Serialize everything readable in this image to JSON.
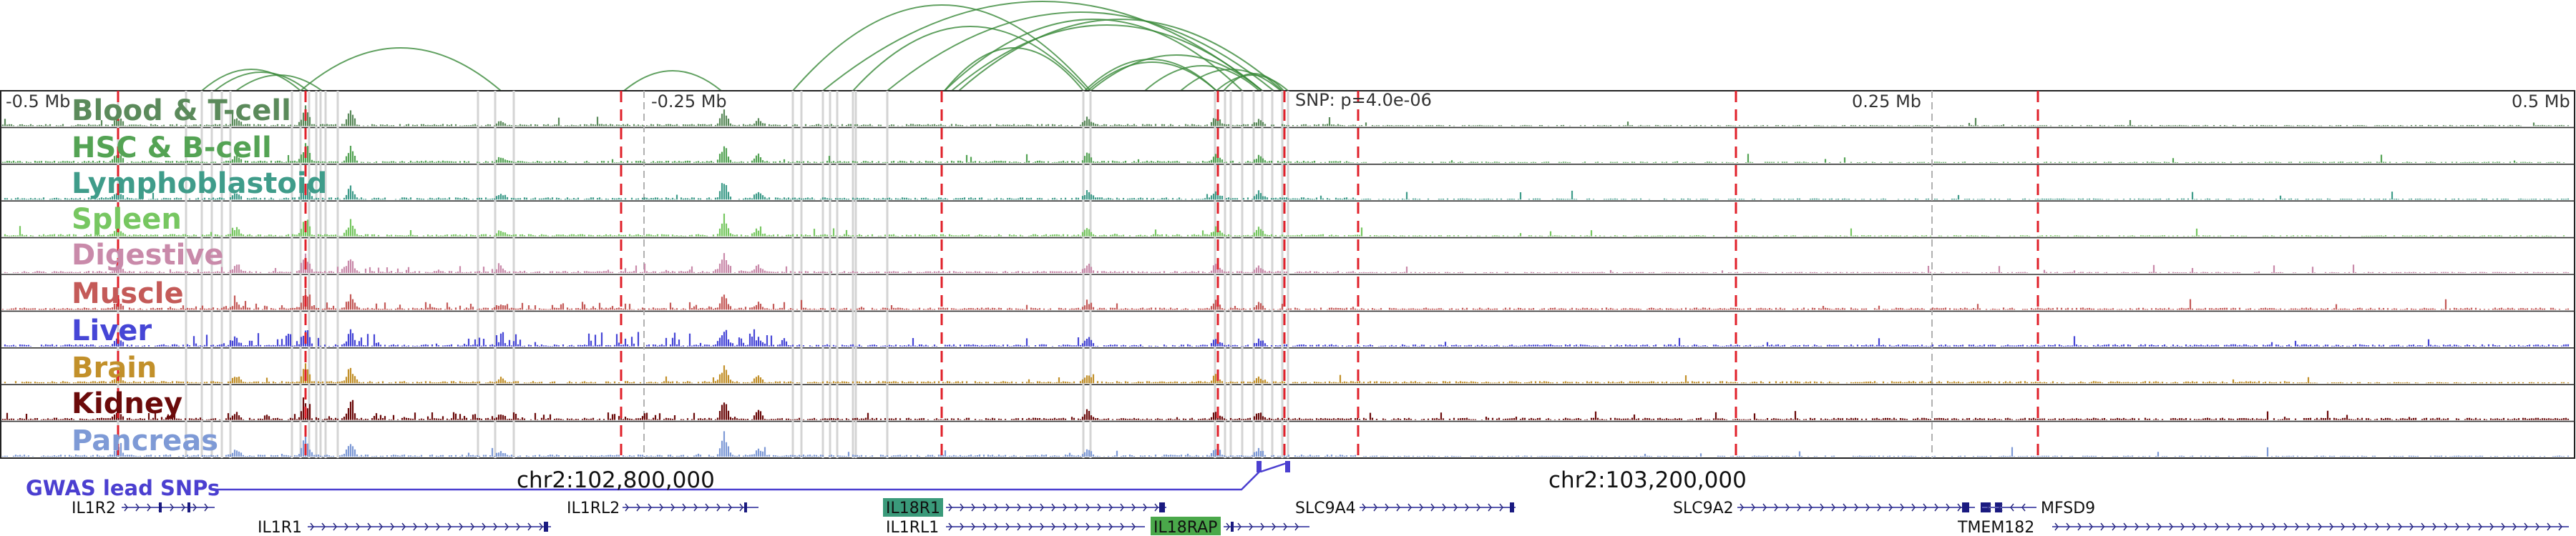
{
  "browser": {
    "axis_labels": [
      "-0.5 Mb",
      "-0.25 Mb",
      "0.25 Mb",
      "0.5 Mb"
    ],
    "snp_label": "SNP: p=4.0e-06",
    "tracks": [
      {
        "label": "Blood & T-cell",
        "color": "#5b8a5b"
      },
      {
        "label": "HSC & B-cell",
        "color": "#54a354"
      },
      {
        "label": "Lymphoblastoid",
        "color": "#3f9c8a"
      },
      {
        "label": "Spleen",
        "color": "#77c761"
      },
      {
        "label": "Digestive",
        "color": "#c98aaa"
      },
      {
        "label": "Muscle",
        "color": "#c45a58"
      },
      {
        "label": "Liver",
        "color": "#4646d6"
      },
      {
        "label": "Brain",
        "color": "#c2902a"
      },
      {
        "label": "Kidney",
        "color": "#6b0a0a"
      },
      {
        "label": "Pancreas",
        "color": "#7e9ad6"
      }
    ],
    "gwas_label": "GWAS lead SNPs",
    "coord_left": "chr2:102,800,000",
    "coord_right": "chr2:103,200,000",
    "genes": {
      "il1r2": "IL1R2",
      "il1r1": "IL1R1",
      "il1rl2": "IL1RL2",
      "il18r1": "IL18R1",
      "il1rl1": "IL1RL1",
      "il18rap": "IL18RAP",
      "slc9a4": "SLC9A4",
      "slc9a2": "SLC9A2",
      "mfsd9": "MFSD9",
      "tmem182": "TMEM182"
    },
    "highlight_color": "#3a9a7a",
    "highlight_color_2": "#4aa84a",
    "gwas_color": "#4b3fd0",
    "red_line_color": "#e0202a",
    "loop_color": "#3a8a3a"
  }
}
